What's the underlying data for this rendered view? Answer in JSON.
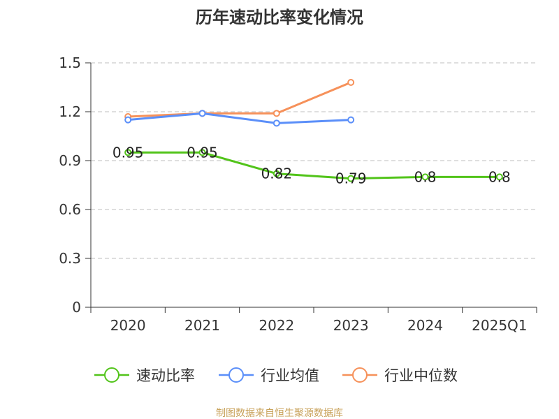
{
  "title": "历年速动比率变化情况",
  "source": "制图数据来自恒生聚源数据库",
  "chart_data": {
    "type": "line",
    "title": "历年速动比率变化情况",
    "categories": [
      "2020",
      "2021",
      "2022",
      "2023",
      "2024",
      "2025Q1"
    ],
    "ylim": [
      0,
      1.5
    ],
    "yticks": [
      "0",
      "0.3",
      "0.6",
      "0.9",
      "1.2",
      "1.5"
    ],
    "grid": true,
    "legend_position": "bottom",
    "series": [
      {
        "name": "速动比率",
        "color": "#52c41a",
        "values": [
          0.95,
          0.95,
          0.82,
          0.79,
          0.8,
          0.8
        ],
        "labels": [
          "0.95",
          "0.95",
          "0.82",
          "0.79",
          "0.8",
          "0.8"
        ]
      },
      {
        "name": "行业均值",
        "color": "#5b8ff9",
        "values": [
          1.15,
          1.19,
          1.13,
          1.15,
          null,
          null
        ]
      },
      {
        "name": "行业中位数",
        "color": "#f6915a",
        "values": [
          1.17,
          1.19,
          1.19,
          1.38,
          null,
          null
        ]
      }
    ]
  }
}
